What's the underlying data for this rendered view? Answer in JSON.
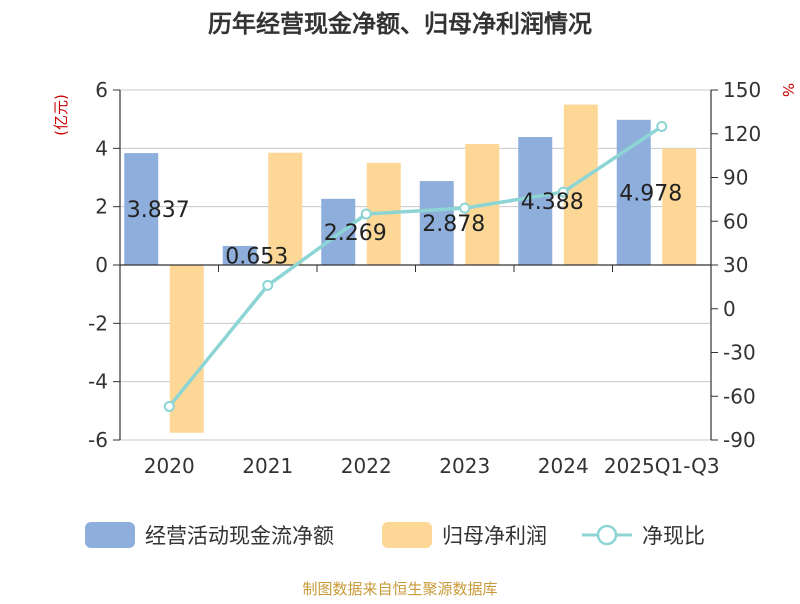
{
  "chart_data": {
    "type": "bar",
    "title": "历年经营现金净额、归母净利润情况",
    "categories": [
      "2020",
      "2021",
      "2022",
      "2023",
      "2024",
      "2025Q1-Q3"
    ],
    "y_left": {
      "label": "(亿元)",
      "range": [
        -6,
        6
      ],
      "ticks": [
        "6",
        "4",
        "2",
        "0",
        "-2",
        "-4",
        "-6"
      ]
    },
    "y_right": {
      "label": "%",
      "range": [
        -90,
        150
      ],
      "ticks": [
        "150",
        "120",
        "90",
        "60",
        "30",
        "0",
        "-30",
        "-60",
        "-90"
      ]
    },
    "series": [
      {
        "name": "经营活动现金流净额",
        "type": "bar",
        "axis": "left",
        "color": "#8eaedb",
        "values": [
          3.837,
          0.653,
          2.269,
          2.878,
          4.388,
          4.978
        ],
        "labels": [
          "3.837",
          "0.653",
          "2.269",
          "2.878",
          "4.388",
          "4.978"
        ]
      },
      {
        "name": "归母净利润",
        "type": "bar",
        "axis": "left",
        "color": "#fdd796",
        "values": [
          -5.75,
          3.85,
          3.5,
          4.15,
          5.5,
          4.0
        ]
      },
      {
        "name": "净现比",
        "type": "line",
        "axis": "right",
        "color": "#8dd5d5",
        "values": [
          -67,
          16,
          65,
          69,
          80,
          125
        ]
      }
    ],
    "grid": true,
    "legend_position": "bottom"
  },
  "footer": {
    "source": "制图数据来自恒生聚源数据库"
  }
}
